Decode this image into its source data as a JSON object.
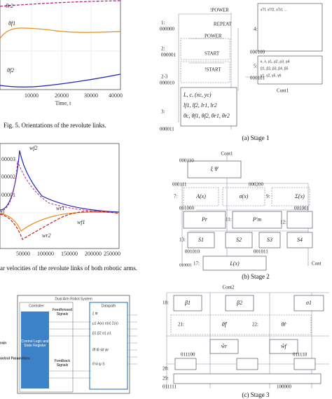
{
  "figures": [
    {
      "labels": [
        "θr2",
        "θf1",
        "θf2"
      ],
      "xticks": [
        "10000",
        "20000",
        "30000",
        "40000"
      ],
      "xlabel": "Time, t",
      "caption": "Fig. 5.  Orientations of the revolute links."
    },
    {
      "labels": [
        "wf2",
        "wf1",
        "wr1",
        "wr2"
      ],
      "yticks": [
        "00003",
        "00002",
        "00001",
        "0"
      ],
      "xticks": [
        "50000",
        "100000",
        "150000",
        "200000",
        "250000"
      ],
      "caption": "ar velocities of the revolute links of both robotic arms."
    },
    {
      "title": "Dual Arm Robot System",
      "controller": "Controller",
      "logic": "Control Logic and State Register",
      "feedforward": "Feedforward Signals",
      "feedback": "Feedback Signals",
      "datapath": "Datapath",
      "left": [
        "rain",
        "ontrol Parameters"
      ],
      "dp_rows": [
        "ξ   Φ",
        "μ1  A(x)  σ(x)  Σ(x)",
        "β1  β2  α1  ρ1",
        "θ̂f  θ̂r  ŵf  ŵr",
        "θ̈  ẅ  ψ  S"
      ]
    }
  ],
  "stages": [
    {
      "labels": [
        "1:",
        "000000",
        "!POWER",
        "REPEAT",
        "POWER",
        "START",
        "2:",
        "000001",
        "!START",
        "2-3",
        "000010",
        "3:",
        "000011",
        "L, c, (xc, yc)",
        "lf1, lf2, lr1, lr2",
        "θc, θf1, θf2, θr1, θr2",
        "4:",
        "000100",
        "5:",
        "000101",
        "Cont1",
        "xTf, xTf2, xTr1 ...",
        "κ, λ, ρ1, ρ2, ρ3, ρ4",
        "β1, β2, β3, β4, β5",
        "γ1, γ2, γ5, γ6"
      ],
      "caption": "(a) Stage 1"
    },
    {
      "labels": [
        "Cont1",
        "000110",
        "ξ   Ψ",
        "000111",
        "7:",
        "A(x)",
        "σ(x)",
        "000200",
        "9:",
        "Σ(x)",
        "001000",
        "001001",
        "Pr",
        "P'm",
        "11:",
        "12:",
        "13:",
        "S1",
        "S2",
        "S3",
        "S4",
        "001010",
        "001011",
        "17:",
        "L(x)",
        "010001",
        "Cont"
      ],
      "caption": "(b) Stage 2"
    },
    {
      "labels": [
        "Cont2",
        "18:",
        "β1",
        "β2",
        "σ1",
        "21:",
        "22:",
        "θ̂f",
        "θ̂r",
        "ŵr",
        "ŵf",
        "011100",
        "011110",
        "28:",
        "29:",
        "011111",
        "100000"
      ],
      "caption": "(c) Stage 3"
    }
  ]
}
